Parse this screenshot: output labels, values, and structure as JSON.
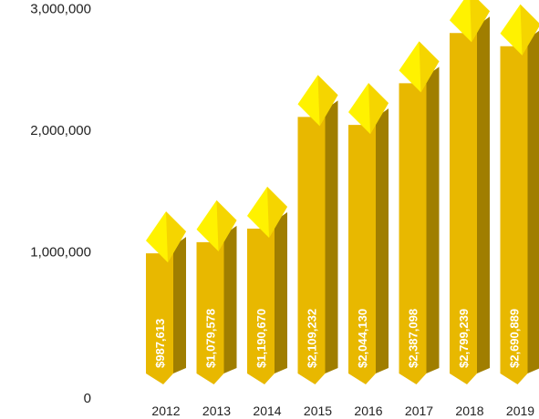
{
  "chart_data": {
    "type": "bar",
    "title": "",
    "xlabel": "",
    "ylabel": "",
    "categories": [
      "2012",
      "2013",
      "2014",
      "2015",
      "2016",
      "2017",
      "2018",
      "2019"
    ],
    "values": [
      987613,
      1079578,
      1190670,
      2109232,
      2044130,
      2387098,
      2799239,
      2690889
    ],
    "data_labels": [
      "$987,613",
      "$1,079,578",
      "$1,190,670",
      "$2,109,232",
      "$2,044,130",
      "$2,387,098",
      "$2,799,239",
      "$2,690,889"
    ],
    "y_ticks": [
      0,
      1000000,
      2000000,
      3000000
    ],
    "y_tick_labels": [
      "0",
      "1,000,000",
      "2,000,000",
      "3,000,000"
    ],
    "ylim": [
      0,
      3000000
    ],
    "grid": false,
    "legend": "none",
    "colors": {
      "bar_front": "#E8B800",
      "bar_side": "#A07E00",
      "cap_light": "#FFF200",
      "cap_dark": "#F5D500",
      "label_text": "#FFFFFF"
    }
  }
}
